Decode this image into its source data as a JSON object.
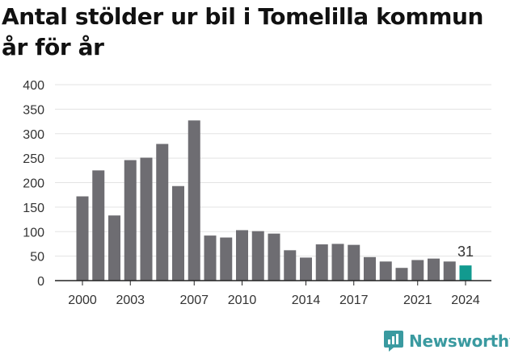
{
  "title_lines": [
    "Antal stölder ur bil i Tomelilla kommun",
    "år för år"
  ],
  "brand": {
    "name": "Newsworthy",
    "color": "#3a9aa0"
  },
  "colors": {
    "bar": "#6e6d72",
    "highlight": "#129a8f",
    "grid": "#e3e3e3",
    "axis": "#222222",
    "text": "#333333"
  },
  "chart_data": {
    "type": "bar",
    "title": "Antal stölder ur bil i Tomelilla kommun år för år",
    "xlabel": "",
    "ylabel": "",
    "categories": [
      "2000",
      "2001",
      "2002",
      "2003",
      "2004",
      "2005",
      "2006",
      "2007",
      "2008",
      "2009",
      "2010",
      "2011",
      "2012",
      "2013",
      "2014",
      "2015",
      "2016",
      "2017",
      "2018",
      "2019",
      "2020",
      "2021",
      "2022",
      "2023",
      "2024"
    ],
    "values": [
      172,
      225,
      133,
      246,
      251,
      279,
      193,
      327,
      92,
      88,
      103,
      101,
      96,
      62,
      47,
      74,
      75,
      73,
      48,
      39,
      26,
      42,
      45,
      39,
      31
    ],
    "x_tick_labels": [
      "2000",
      "2003",
      "2007",
      "2010",
      "2014",
      "2017",
      "2021",
      "2024"
    ],
    "y_ticks": [
      0,
      50,
      100,
      150,
      200,
      250,
      300,
      350,
      400
    ],
    "ylim": [
      0,
      400
    ],
    "highlight": {
      "category": "2024",
      "label": "31"
    },
    "grid": true,
    "legend": "none"
  }
}
